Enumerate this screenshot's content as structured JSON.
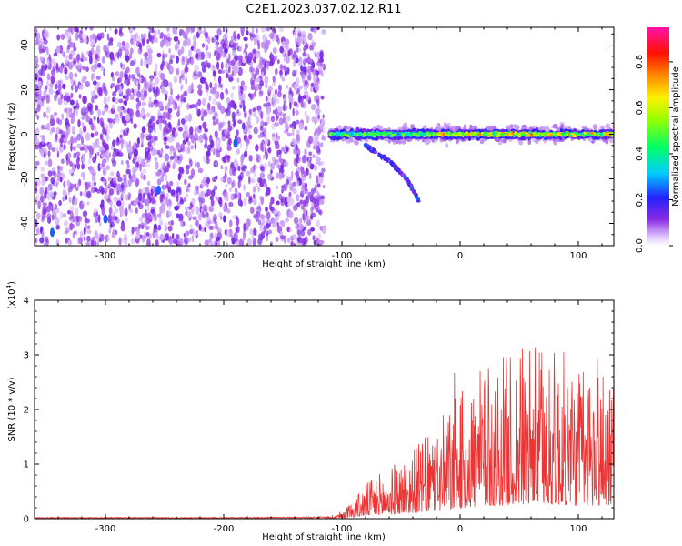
{
  "title": "C2E1.2023.037.02.12.R11",
  "colors": {
    "snr_line": "#ee3333",
    "spectrogram_noise": "#7a22ee"
  },
  "chart_data": [
    {
      "type": "heatmap",
      "title": "C2E1.2023.037.02.12.R11",
      "xlabel": "Height of straight line (km)",
      "ylabel": "Frequency (Hz)",
      "xlim": [
        -360,
        130
      ],
      "ylim": [
        -50,
        48
      ],
      "x_ticks": [
        -300,
        -200,
        -100,
        0,
        100
      ],
      "y_ticks": [
        -40,
        -20,
        0,
        20,
        40
      ],
      "colorbar": {
        "label": "Normalized spectral amplitude",
        "range": [
          0,
          0.95
        ],
        "ticks": [
          "0.0",
          "0.2",
          "0.4",
          "0.6",
          "0.8"
        ],
        "colormap": "rainbow: white-lavender-purple-blue-cyan-green-yellow-orange-red-magenta"
      },
      "features": [
        {
          "description": "scattered weak noise",
          "x_range": [
            -360,
            -115
          ],
          "freq_range": [
            -50,
            48
          ],
          "amplitude": 0.1
        },
        {
          "description": "echo band near 0 Hz",
          "x_range": [
            -110,
            130
          ],
          "freq_center": 0,
          "amplitude": 0.8
        },
        {
          "description": "descending branch",
          "points": [
            [
              -80,
              -5
            ],
            [
              -60,
              -12
            ],
            [
              -45,
              -20
            ],
            [
              -35,
              -30
            ]
          ],
          "amplitude": 0.3
        }
      ]
    },
    {
      "type": "line",
      "xlabel": "Height of straight line (km)",
      "ylabel": "SNR (10 * v/v)",
      "multiplier": "(x10",
      "multiplier_exp": "4",
      "multiplier_close": ")",
      "xlim": [
        -360,
        130
      ],
      "ylim": [
        0,
        4
      ],
      "x_ticks": [
        -300,
        -200,
        -100,
        0,
        100
      ],
      "y_ticks": [
        0,
        1,
        2,
        3,
        4
      ],
      "series": [
        {
          "x": [
            -360,
            -300,
            -200,
            -110,
            -100,
            -90,
            -80,
            -70,
            -60,
            -50,
            -40,
            -30,
            -20,
            -10,
            0,
            10,
            20,
            30,
            40,
            50,
            60,
            70,
            80,
            90,
            100,
            110,
            120,
            130
          ],
          "y": [
            0.02,
            0.02,
            0.02,
            0.03,
            0.08,
            0.2,
            0.35,
            0.45,
            0.5,
            0.6,
            0.7,
            0.8,
            0.95,
            1.1,
            1.25,
            1.4,
            1.5,
            1.55,
            1.65,
            1.7,
            1.75,
            1.75,
            1.7,
            1.65,
            1.55,
            1.55,
            1.6,
            1.7
          ]
        }
      ]
    }
  ]
}
